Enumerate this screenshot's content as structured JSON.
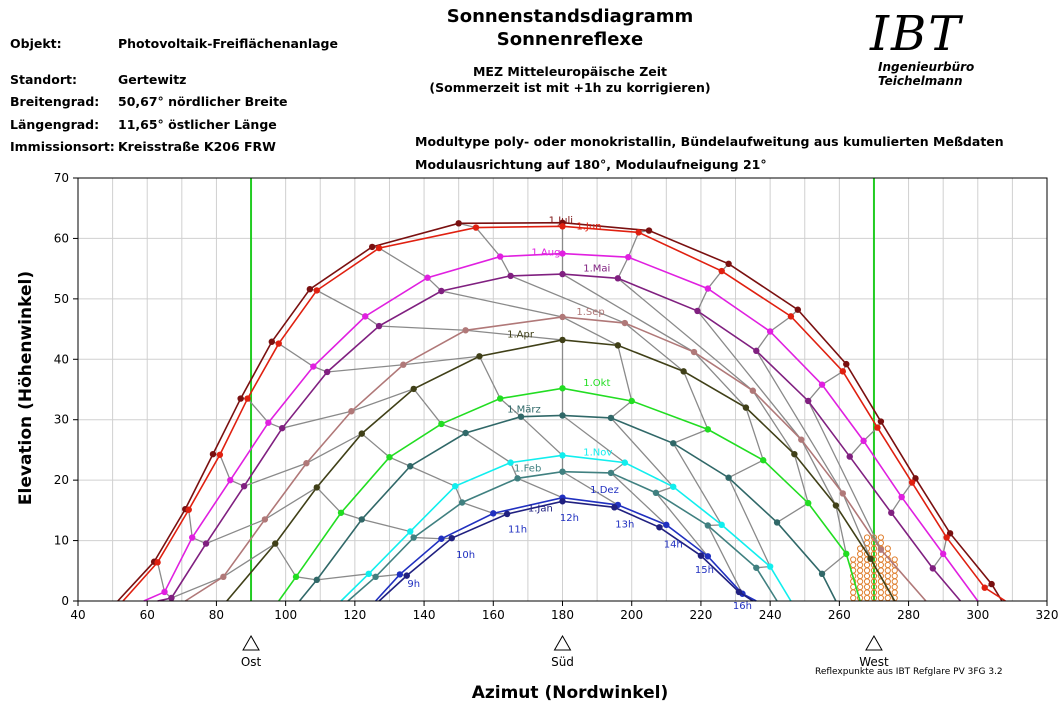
{
  "header": {
    "title1": "Sonnenstandsdiagramm",
    "title2": "Sonnenreflexe",
    "time1": "MEZ Mitteleuropäische Zeit",
    "time2": "(Sommerzeit ist mit +1h zu korrigieren)",
    "module1": "Modultype poly- oder monokristallin, Bündelaufweitung aus kumulierten Meßdaten",
    "module2": "Modulausrichtung auf 180°, Modulaufneigung 21°"
  },
  "info": {
    "objekt_label": "Objekt:",
    "objekt_value": "Photovoltaik-Freiflächenanlage",
    "standort_label": "Standort:",
    "standort_value": "Gertewitz",
    "breite_label": "Breitengrad:",
    "breite_value": "50,67°  nördlicher Breite",
    "laenge_label": "Längengrad:",
    "laenge_value": "11,65°  östlicher Länge",
    "immission_label": "Immissionsort:",
    "immission_value": "Kreisstraße K206 FRW"
  },
  "logo": {
    "mark": "IBT",
    "subtitle": "Ingenieurbüro Teichelmann"
  },
  "footer": "Reflexpunkte aus IBT Refglare PV 3FG 3.2",
  "chart_data": {
    "type": "line",
    "xlabel": "Azimut (Nordwinkel)",
    "ylabel": "Elevation (Höhenwinkel)",
    "xlim": [
      40,
      320
    ],
    "ylim": [
      0,
      70
    ],
    "xticks": [
      40,
      60,
      80,
      100,
      120,
      140,
      160,
      180,
      200,
      220,
      240,
      260,
      280,
      300,
      320
    ],
    "yticks": [
      0,
      10,
      20,
      30,
      40,
      50,
      60,
      70
    ],
    "grid": true,
    "direction_markers": [
      {
        "label": "Ost",
        "x": 90
      },
      {
        "label": "Süd",
        "x": 180
      },
      {
        "label": "West",
        "x": 270
      }
    ],
    "vertical_lines": [
      {
        "x": 90,
        "color": "#22cc22"
      },
      {
        "x": 270,
        "color": "#22cc22"
      }
    ],
    "series": [
      {
        "name": "1.Juli",
        "color": "#7a1010",
        "label_pos": [
          176,
          62.5
        ],
        "points": [
          [
            51.5,
            0
          ],
          [
            62,
            6.5
          ],
          [
            71,
            15.2
          ],
          [
            79,
            24.3
          ],
          [
            87,
            33.5
          ],
          [
            96,
            42.9
          ],
          [
            107,
            51.6
          ],
          [
            125,
            58.6
          ],
          [
            150,
            62.5
          ],
          [
            180,
            62.6
          ],
          [
            205,
            61.3
          ],
          [
            228,
            55.8
          ],
          [
            248,
            48.2
          ],
          [
            262,
            39.2
          ],
          [
            272,
            29.7
          ],
          [
            282,
            20.3
          ],
          [
            292,
            11.2
          ],
          [
            304,
            2.8
          ],
          [
            307,
            0
          ]
        ]
      },
      {
        "name": "1.Jun",
        "color": "#e02010",
        "label_pos": [
          184,
          61.5
        ],
        "points": [
          [
            53,
            0
          ],
          [
            63,
            6.4
          ],
          [
            72,
            15.1
          ],
          [
            81,
            24.2
          ],
          [
            89,
            33.5
          ],
          [
            98,
            42.6
          ],
          [
            109,
            51.4
          ],
          [
            127,
            58.4
          ],
          [
            155,
            61.8
          ],
          [
            180,
            62.0
          ],
          [
            202,
            61.0
          ],
          [
            226,
            54.6
          ],
          [
            246,
            47.1
          ],
          [
            261,
            38
          ],
          [
            271,
            28.7
          ],
          [
            281,
            19.6
          ],
          [
            291,
            10.5
          ],
          [
            302,
            2.2
          ],
          [
            308,
            0
          ]
        ]
      },
      {
        "name": "1.Aug",
        "color": "#e020e0",
        "label_pos": [
          171,
          57.2
        ],
        "points": [
          [
            59,
            0
          ],
          [
            65,
            1.5
          ],
          [
            73,
            10.5
          ],
          [
            84,
            20
          ],
          [
            95,
            29.5
          ],
          [
            108,
            38.8
          ],
          [
            123,
            47.1
          ],
          [
            141,
            53.5
          ],
          [
            162,
            57
          ],
          [
            180,
            57.5
          ],
          [
            199,
            56.9
          ],
          [
            222,
            51.7
          ],
          [
            240,
            44.6
          ],
          [
            255,
            35.8
          ],
          [
            267,
            26.5
          ],
          [
            278,
            17.2
          ],
          [
            290,
            7.8
          ],
          [
            300,
            0
          ]
        ]
      },
      {
        "name": "1.Mai",
        "color": "#802080",
        "label_pos": [
          186,
          54.5
        ],
        "points": [
          [
            63,
            0
          ],
          [
            67,
            0.5
          ],
          [
            77,
            9.5
          ],
          [
            88,
            19
          ],
          [
            99,
            28.6
          ],
          [
            112,
            37.9
          ],
          [
            127,
            45.5
          ],
          [
            145,
            51.3
          ],
          [
            165,
            53.8
          ],
          [
            180,
            54.1
          ],
          [
            196,
            53.4
          ],
          [
            219,
            48
          ],
          [
            236,
            41.4
          ],
          [
            251,
            33.1
          ],
          [
            263,
            23.9
          ],
          [
            275,
            14.6
          ],
          [
            287,
            5.4
          ],
          [
            295,
            0
          ]
        ]
      },
      {
        "name": "1.Sep",
        "color": "#b07878",
        "label_pos": [
          184,
          47.3
        ],
        "points": [
          [
            71,
            0
          ],
          [
            82,
            4
          ],
          [
            94,
            13.5
          ],
          [
            106,
            22.8
          ],
          [
            119,
            31.4
          ],
          [
            134,
            39.1
          ],
          [
            152,
            44.8
          ],
          [
            180,
            47.0
          ],
          [
            198,
            46
          ],
          [
            218,
            41.2
          ],
          [
            235,
            34.8
          ],
          [
            249,
            26.7
          ],
          [
            261,
            17.8
          ],
          [
            272,
            8.5
          ],
          [
            285,
            0
          ]
        ]
      },
      {
        "name": "1.Apr",
        "color": "#404018",
        "label_pos": [
          164,
          43.6
        ],
        "points": [
          [
            83,
            0
          ],
          [
            97,
            9.5
          ],
          [
            109,
            18.8
          ],
          [
            122,
            27.7
          ],
          [
            137,
            35.1
          ],
          [
            156,
            40.5
          ],
          [
            180,
            43.2
          ],
          [
            196,
            42.3
          ],
          [
            215,
            38
          ],
          [
            233,
            32
          ],
          [
            247,
            24.3
          ],
          [
            259,
            15.8
          ],
          [
            269,
            7
          ],
          [
            276,
            0
          ]
        ]
      },
      {
        "name": "1.Okt",
        "color": "#22dd22",
        "label_pos": [
          186,
          35.6
        ],
        "points": [
          [
            98,
            0
          ],
          [
            103,
            4
          ],
          [
            116,
            14.6
          ],
          [
            130,
            23.8
          ],
          [
            145,
            29.3
          ],
          [
            162,
            33.5
          ],
          [
            180,
            35.2
          ],
          [
            200,
            33.1
          ],
          [
            222,
            28.4
          ],
          [
            238,
            23.3
          ],
          [
            251,
            16.2
          ],
          [
            262,
            7.8
          ],
          [
            266,
            0
          ]
        ]
      },
      {
        "name": "1.März",
        "color": "#306868",
        "label_pos": [
          164,
          31.2
        ],
        "points": [
          [
            104,
            0
          ],
          [
            109,
            3.5
          ],
          [
            122,
            13.5
          ],
          [
            136,
            22.3
          ],
          [
            152,
            27.8
          ],
          [
            168,
            30.5
          ],
          [
            180,
            30.7
          ],
          [
            194,
            30.3
          ],
          [
            212,
            26.1
          ],
          [
            228,
            20.4
          ],
          [
            242,
            13
          ],
          [
            255,
            4.5
          ],
          [
            259,
            0
          ]
        ]
      },
      {
        "name": "1.Nov",
        "color": "#11eeee",
        "label_pos": [
          186,
          24.1
        ],
        "points": [
          [
            116,
            0
          ],
          [
            124,
            4.5
          ],
          [
            136,
            11.5
          ],
          [
            149,
            19
          ],
          [
            165,
            22.9
          ],
          [
            180,
            24.1
          ],
          [
            198,
            22.9
          ],
          [
            212,
            18.9
          ],
          [
            226,
            12.6
          ],
          [
            240,
            5.7
          ],
          [
            246,
            0
          ]
        ]
      },
      {
        "name": "1.Feb",
        "color": "#408080",
        "label_pos": [
          166,
          21.4
        ],
        "points": [
          [
            118,
            0
          ],
          [
            126,
            4
          ],
          [
            137,
            10.5
          ],
          [
            151,
            16.3
          ],
          [
            167,
            20.3
          ],
          [
            180,
            21.4
          ],
          [
            194,
            21.2
          ],
          [
            207,
            17.9
          ],
          [
            222,
            12.5
          ],
          [
            236,
            5.5
          ],
          [
            242,
            0
          ]
        ]
      },
      {
        "name": "1.Dez",
        "color": "#2030c0",
        "label_pos": [
          188,
          17.9
        ],
        "points": [
          [
            126,
            0
          ],
          [
            133,
            4.4
          ],
          [
            145,
            10.3
          ],
          [
            160,
            14.5
          ],
          [
            180,
            17.1
          ],
          [
            196,
            15.9
          ],
          [
            210,
            12.6
          ],
          [
            222,
            7.4
          ],
          [
            232,
            1.2
          ],
          [
            236,
            0
          ]
        ]
      },
      {
        "name": "1.Jan",
        "color": "#202080",
        "label_pos": [
          170,
          14.8
        ],
        "points": [
          [
            127,
            0
          ],
          [
            135,
            4.2
          ],
          [
            148,
            10.4
          ],
          [
            164,
            14.4
          ],
          [
            180,
            16.5
          ],
          [
            195,
            15.5
          ],
          [
            208,
            12.2
          ],
          [
            220,
            7.5
          ],
          [
            231,
            1.5
          ],
          [
            235,
            0
          ]
        ]
      }
    ],
    "hour_labels": [
      {
        "label": "9h",
        "x": 137,
        "y": 3.0
      },
      {
        "label": "10h",
        "x": 152,
        "y": 7.8
      },
      {
        "label": "11h",
        "x": 167,
        "y": 12.0
      },
      {
        "label": "12h",
        "x": 182,
        "y": 13.9
      },
      {
        "label": "13h",
        "x": 198,
        "y": 12.8
      },
      {
        "label": "14h",
        "x": 212,
        "y": 9.5
      },
      {
        "label": "15h",
        "x": 221,
        "y": 5.3
      },
      {
        "label": "16h",
        "x": 232,
        "y": -0.7
      }
    ],
    "reflex_points": {
      "color": "#e08030",
      "x_range": [
        264,
        276
      ],
      "y_range": [
        0,
        10.8
      ],
      "columns": 7
    }
  }
}
